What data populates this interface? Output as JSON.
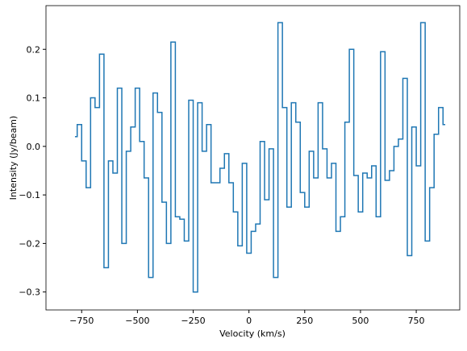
{
  "chart_data": {
    "type": "line",
    "drawstyle": "steps-mid",
    "color": "#1f77b4",
    "xlabel": "Velocity (km/s)",
    "ylabel": "Intensity (Jy/beam)",
    "x": [
      -780,
      -760,
      -740,
      -720,
      -700,
      -680,
      -660,
      -640,
      -620,
      -600,
      -580,
      -560,
      -540,
      -520,
      -500,
      -480,
      -460,
      -440,
      -420,
      -400,
      -380,
      -360,
      -340,
      -320,
      -300,
      -280,
      -260,
      -240,
      -220,
      -200,
      -180,
      -160,
      -140,
      -120,
      -100,
      -80,
      -60,
      -40,
      -20,
      0,
      20,
      40,
      60,
      80,
      100,
      120,
      140,
      160,
      180,
      200,
      220,
      240,
      260,
      280,
      300,
      320,
      340,
      360,
      380,
      400,
      420,
      440,
      460,
      480,
      500,
      520,
      540,
      560,
      580,
      600,
      620,
      640,
      660,
      680,
      700,
      720,
      740,
      760,
      780,
      800,
      820,
      840,
      860,
      880
    ],
    "values": [
      0.02,
      0.045,
      -0.03,
      -0.085,
      0.1,
      0.08,
      0.19,
      -0.25,
      -0.03,
      -0.055,
      0.12,
      -0.2,
      -0.01,
      0.04,
      0.12,
      0.01,
      -0.065,
      -0.27,
      0.11,
      0.07,
      -0.115,
      -0.2,
      0.215,
      -0.145,
      -0.15,
      -0.195,
      0.095,
      -0.3,
      0.09,
      -0.01,
      0.045,
      -0.075,
      -0.075,
      -0.045,
      -0.015,
      -0.075,
      -0.135,
      -0.205,
      -0.035,
      -0.22,
      -0.175,
      -0.16,
      0.01,
      -0.11,
      -0.005,
      -0.27,
      0.255,
      0.08,
      -0.125,
      0.09,
      0.05,
      -0.095,
      -0.125,
      -0.01,
      -0.065,
      0.09,
      -0.005,
      -0.065,
      -0.035,
      -0.175,
      -0.145,
      0.05,
      0.2,
      -0.06,
      -0.135,
      -0.055,
      -0.065,
      -0.04,
      -0.145,
      0.195,
      -0.07,
      -0.05,
      0.0,
      0.015,
      0.14,
      -0.225,
      0.04,
      -0.04,
      0.255,
      -0.195,
      -0.085,
      0.025,
      0.08,
      0.045
    ],
    "xlim": [
      -910,
      945
    ],
    "ylim": [
      -0.337,
      0.29
    ],
    "xticks": [
      {
        "value": -750,
        "label": "−750"
      },
      {
        "value": -500,
        "label": "−500"
      },
      {
        "value": -250,
        "label": "−250"
      },
      0,
      250,
      500,
      750
    ],
    "yticks": [
      {
        "value": -0.3,
        "label": "−0.3"
      },
      {
        "value": -0.2,
        "label": "−0.2"
      },
      {
        "value": -0.1,
        "label": "−0.1"
      },
      {
        "value": 0,
        "label": "0.0"
      },
      0.1,
      0.2
    ]
  }
}
